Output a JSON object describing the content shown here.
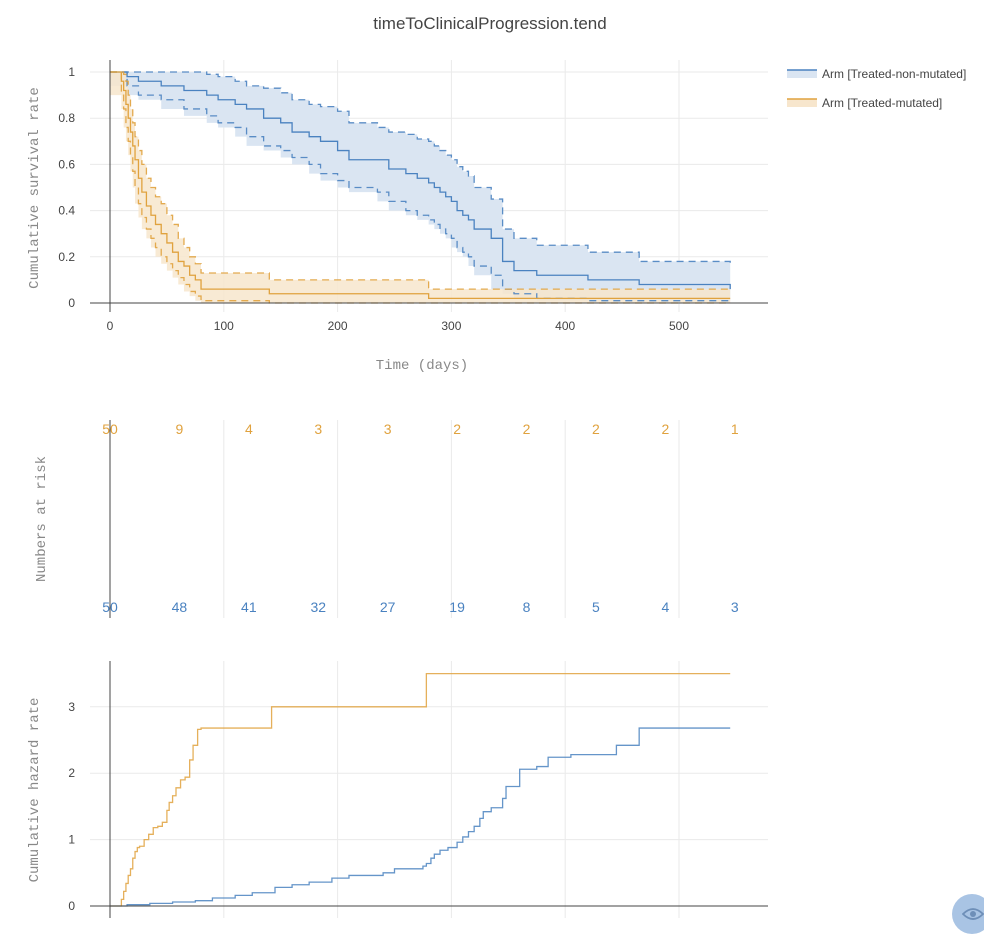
{
  "chart_data": [
    {
      "type": "line",
      "subtype": "kaplan-meier-survival",
      "title": "timeToClinicalProgression.tend",
      "xlabel": "Time (days)",
      "ylabel": "Cumulative survival rate",
      "xlim": [
        -20,
        578
      ],
      "ylim": [
        0,
        1.03
      ],
      "xticks": [
        0,
        100,
        200,
        300,
        400,
        500
      ],
      "yticks": [
        0,
        0.2,
        0.4,
        0.6,
        0.8,
        1
      ],
      "ytick_labels": [
        "0",
        "0.2",
        "0.4",
        "0.6",
        "0.8",
        "1"
      ],
      "grid": true,
      "legend_position": "top-right",
      "series": [
        {
          "name": "Arm [Treated-non-mutated]",
          "color": "#4a82c0",
          "fill": "#dae5f2",
          "x": [
            0,
            15,
            25,
            45,
            65,
            85,
            95,
            110,
            120,
            135,
            150,
            160,
            175,
            185,
            200,
            210,
            235,
            245,
            260,
            270,
            280,
            285,
            290,
            295,
            300,
            305,
            310,
            315,
            320,
            335,
            345,
            355,
            375,
            420,
            465,
            545
          ],
          "survival": [
            1,
            0.98,
            0.96,
            0.94,
            0.92,
            0.9,
            0.88,
            0.86,
            0.84,
            0.8,
            0.78,
            0.74,
            0.72,
            0.7,
            0.66,
            0.62,
            0.62,
            0.58,
            0.56,
            0.54,
            0.52,
            0.5,
            0.48,
            0.46,
            0.44,
            0.4,
            0.38,
            0.36,
            0.32,
            0.28,
            0.18,
            0.14,
            0.12,
            0.1,
            0.08,
            0.06
          ],
          "upper": [
            1,
            1,
            1,
            1,
            1,
            0.99,
            0.98,
            0.96,
            0.94,
            0.93,
            0.91,
            0.88,
            0.86,
            0.85,
            0.83,
            0.78,
            0.76,
            0.74,
            0.73,
            0.71,
            0.7,
            0.68,
            0.66,
            0.64,
            0.62,
            0.59,
            0.57,
            0.55,
            0.5,
            0.45,
            0.32,
            0.28,
            0.25,
            0.22,
            0.18,
            0.16
          ],
          "lower": [
            1,
            0.94,
            0.9,
            0.88,
            0.84,
            0.81,
            0.78,
            0.76,
            0.72,
            0.68,
            0.66,
            0.63,
            0.6,
            0.56,
            0.53,
            0.5,
            0.48,
            0.44,
            0.4,
            0.38,
            0.36,
            0.34,
            0.32,
            0.3,
            0.28,
            0.24,
            0.22,
            0.2,
            0.16,
            0.12,
            0.06,
            0.04,
            0.02,
            0.01,
            0.01,
            0.01
          ]
        },
        {
          "name": "Arm [Treated-mutated]",
          "color": "#e0a23e",
          "fill": "#f7e6cd",
          "x": [
            0,
            10,
            12,
            14,
            16,
            18,
            20,
            22,
            25,
            28,
            32,
            36,
            40,
            45,
            50,
            55,
            60,
            65,
            70,
            75,
            80,
            140,
            280,
            545
          ],
          "survival": [
            1,
            0.96,
            0.92,
            0.86,
            0.8,
            0.74,
            0.68,
            0.62,
            0.54,
            0.48,
            0.42,
            0.38,
            0.34,
            0.3,
            0.26,
            0.22,
            0.18,
            0.16,
            0.12,
            0.1,
            0.06,
            0.04,
            0.02,
            0.02
          ],
          "upper": [
            1,
            1,
            0.99,
            0.96,
            0.9,
            0.84,
            0.78,
            0.72,
            0.66,
            0.6,
            0.54,
            0.5,
            0.46,
            0.43,
            0.38,
            0.34,
            0.28,
            0.24,
            0.2,
            0.17,
            0.13,
            0.1,
            0.06,
            0.06
          ],
          "lower": [
            1,
            0.9,
            0.84,
            0.76,
            0.7,
            0.64,
            0.57,
            0.5,
            0.43,
            0.37,
            0.32,
            0.28,
            0.24,
            0.2,
            0.17,
            0.14,
            0.11,
            0.08,
            0.05,
            0.03,
            0.01,
            0.0,
            0.0,
            0.0
          ]
        }
      ]
    },
    {
      "type": "table",
      "subtype": "numbers-at-risk",
      "ylabel": "Numbers at risk",
      "x": [
        0,
        61,
        122,
        183,
        244,
        305,
        366,
        427,
        488,
        549
      ],
      "rows": [
        {
          "name": "Arm [Treated-mutated]",
          "color": "#e0a23e",
          "values": [
            50,
            9,
            4,
            3,
            3,
            2,
            2,
            2,
            2,
            1
          ]
        },
        {
          "name": "Arm [Treated-non-mutated]",
          "color": "#4a82c0",
          "values": [
            50,
            48,
            41,
            32,
            27,
            19,
            8,
            5,
            4,
            3
          ]
        }
      ]
    },
    {
      "type": "line",
      "subtype": "cumulative-hazard",
      "ylabel": "Cumulative hazard rate",
      "xlim": [
        -20,
        578
      ],
      "ylim": [
        0,
        3.7
      ],
      "yticks": [
        0,
        1,
        2,
        3
      ],
      "grid": true,
      "series": [
        {
          "name": "Arm [Treated-non-mutated]",
          "color": "#4a82c0",
          "x": [
            0,
            15,
            35,
            55,
            75,
            90,
            110,
            125,
            145,
            160,
            175,
            195,
            210,
            240,
            250,
            275,
            278,
            282,
            285,
            290,
            297,
            305,
            310,
            315,
            320,
            325,
            328,
            335,
            345,
            348,
            360,
            375,
            385,
            405,
            445,
            465,
            545
          ],
          "values": [
            0,
            0.02,
            0.04,
            0.06,
            0.08,
            0.12,
            0.16,
            0.2,
            0.28,
            0.32,
            0.36,
            0.42,
            0.46,
            0.5,
            0.56,
            0.6,
            0.64,
            0.72,
            0.78,
            0.84,
            0.88,
            0.96,
            1.04,
            1.12,
            1.2,
            1.32,
            1.42,
            1.48,
            1.62,
            1.8,
            2.06,
            2.1,
            2.24,
            2.28,
            2.42,
            2.68,
            2.68
          ]
        },
        {
          "name": "Arm [Treated-mutated]",
          "color": "#e0a23e",
          "x": [
            0,
            10,
            12,
            14,
            16,
            18,
            20,
            22,
            24,
            26,
            30,
            34,
            38,
            42,
            46,
            50,
            52,
            55,
            58,
            62,
            66,
            70,
            73,
            77,
            80,
            142,
            278,
            545
          ],
          "values": [
            0,
            0.1,
            0.22,
            0.34,
            0.46,
            0.56,
            0.72,
            0.82,
            0.88,
            0.9,
            1.0,
            1.08,
            1.18,
            1.2,
            1.26,
            1.44,
            1.56,
            1.66,
            1.78,
            1.9,
            1.94,
            2.2,
            2.42,
            2.66,
            2.68,
            3.0,
            3.5,
            3.5
          ]
        }
      ]
    }
  ],
  "ui": {
    "title": "timeToClinicalProgression.tend",
    "legend": [
      {
        "label": "Arm [Treated-non-mutated]",
        "color": "#4a82c0",
        "fill": "#dae5f2"
      },
      {
        "label": "Arm [Treated-mutated]",
        "color": "#e0a23e",
        "fill": "#f7e6cd"
      }
    ],
    "view_button_icon": "eye-icon"
  }
}
